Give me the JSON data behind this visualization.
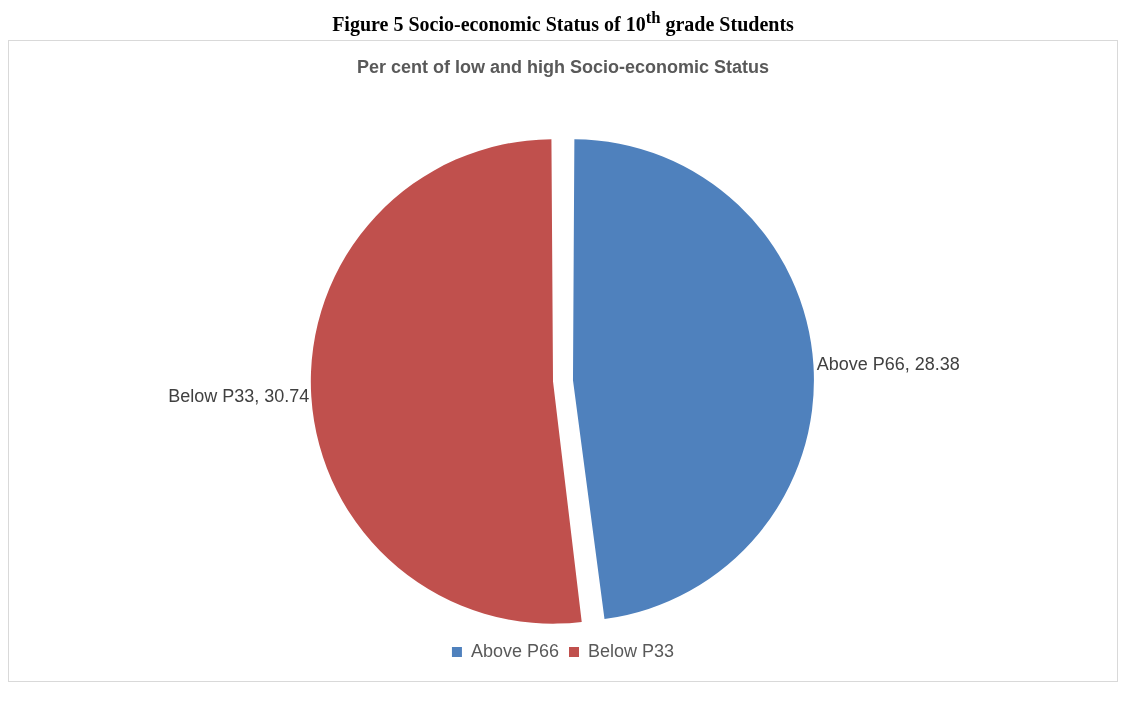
{
  "chart_data": {
    "type": "pie",
    "title": "Figure 5  Socio-economic Status of 10$^{th}$ grade Students",
    "subtitle": "Per cent of low and high Socio-economic Status",
    "categories": [
      "Above P66",
      "Below P33"
    ],
    "values": [
      28.38,
      30.74
    ],
    "colors": [
      "#4f81bd",
      "#c0504d"
    ],
    "value_labels": [
      "Above P66, 28.38",
      "Below P33, 30.74"
    ],
    "legend": "bottom"
  }
}
